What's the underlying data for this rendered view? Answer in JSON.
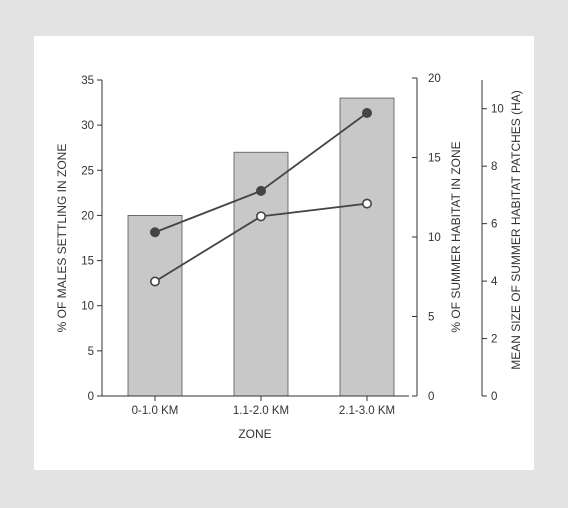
{
  "chart_data": {
    "type": "bar",
    "xlabel": "ZONE",
    "categories": [
      "0-1.0 KM",
      "1.1-2.0 KM",
      "2.1-3.0 KM"
    ],
    "axes": {
      "left": {
        "label": "% OF MALES SETTLING IN ZONE",
        "ylim": [
          0,
          35
        ],
        "ticks": [
          0,
          5,
          10,
          15,
          20,
          25,
          30,
          35
        ]
      },
      "right1": {
        "label": "% OF SUMMER HABITAT IN ZONE",
        "ylim": [
          0,
          20
        ],
        "ticks": [
          0,
          5,
          10,
          15,
          20
        ]
      },
      "right2": {
        "label": "MEAN SIZE OF SUMMER HABITAT PATCHES (HA)",
        "ylim": [
          0,
          11
        ],
        "ticks": [
          0,
          2,
          4,
          6,
          8,
          10
        ]
      }
    },
    "bars": {
      "axis": "left",
      "values": [
        20,
        27,
        33
      ],
      "color": "#c8c8c8"
    },
    "lines": [
      {
        "axis": "right1",
        "marker": "filled",
        "values": [
          10.3,
          12.9,
          17.8
        ],
        "color": "#444444"
      },
      {
        "axis": "right1",
        "marker": "open",
        "values": [
          7.2,
          11.3,
          12.1
        ],
        "color": "#444444"
      }
    ],
    "grid": false,
    "legend": "none"
  }
}
